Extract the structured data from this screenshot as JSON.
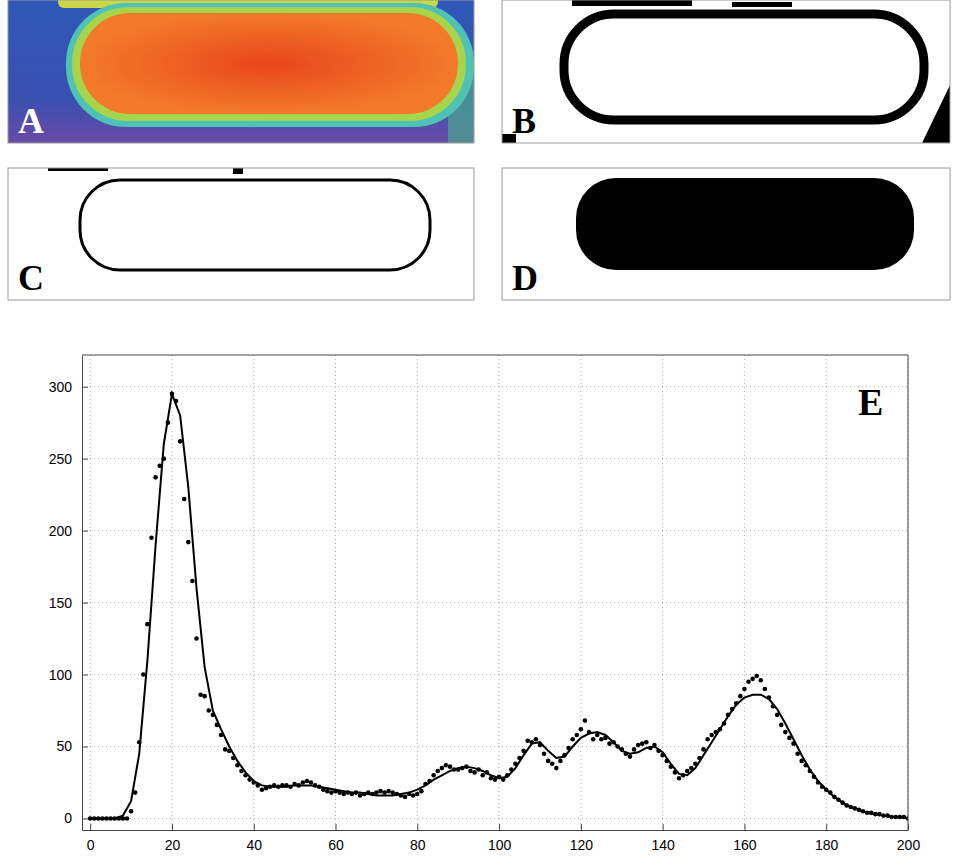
{
  "panels": [
    {
      "label": "A"
    },
    {
      "label": "B"
    },
    {
      "label": "C"
    },
    {
      "label": "D"
    }
  ],
  "chart_data": {
    "type": "scatter",
    "label": "E",
    "xlim": [
      -2,
      200
    ],
    "ylim": [
      -8,
      322
    ],
    "xticks": [
      0,
      20,
      40,
      60,
      80,
      100,
      120,
      140,
      160,
      180,
      200
    ],
    "yticks": [
      0,
      50,
      100,
      150,
      200,
      250,
      300
    ],
    "grid": true,
    "series": [
      {
        "type": "scatter",
        "marker": "circle",
        "color": "#000000",
        "x": [
          0,
          1,
          2,
          3,
          4,
          5,
          6,
          7,
          8,
          9,
          10,
          11,
          12,
          13,
          14,
          15,
          16,
          17,
          18,
          19,
          20,
          21,
          22,
          23,
          24,
          25,
          26,
          27,
          28,
          29,
          30,
          31,
          32,
          33,
          34,
          35,
          36,
          37,
          38,
          39,
          40,
          41,
          42,
          43,
          44,
          45,
          46,
          47,
          48,
          49,
          50,
          51,
          52,
          53,
          54,
          55,
          56,
          57,
          58,
          59,
          60,
          61,
          62,
          63,
          64,
          65,
          66,
          67,
          68,
          69,
          70,
          71,
          72,
          73,
          74,
          75,
          76,
          77,
          78,
          79,
          80,
          81,
          82,
          83,
          84,
          85,
          86,
          87,
          88,
          89,
          90,
          91,
          92,
          93,
          94,
          95,
          96,
          97,
          98,
          99,
          100,
          101,
          102,
          103,
          104,
          105,
          106,
          107,
          108,
          109,
          110,
          111,
          112,
          113,
          114,
          115,
          116,
          117,
          118,
          119,
          120,
          121,
          122,
          123,
          124,
          125,
          126,
          127,
          128,
          129,
          130,
          131,
          132,
          133,
          134,
          135,
          136,
          137,
          138,
          139,
          140,
          141,
          142,
          143,
          144,
          145,
          146,
          147,
          148,
          149,
          150,
          151,
          152,
          153,
          154,
          155,
          156,
          157,
          158,
          159,
          160,
          161,
          162,
          163,
          164,
          165,
          166,
          167,
          168,
          169,
          170,
          171,
          172,
          173,
          174,
          175,
          176,
          177,
          178,
          179,
          180,
          181,
          182,
          183,
          184,
          185,
          186,
          187,
          188,
          189,
          190,
          191,
          192,
          193,
          194,
          195,
          196,
          197,
          198,
          199,
          200
        ],
        "values": [
          0,
          0,
          0,
          0,
          0,
          0,
          0,
          0,
          0,
          0,
          5,
          18,
          53,
          100,
          135,
          195,
          237,
          245,
          250,
          275,
          295,
          290,
          262,
          222,
          192,
          165,
          125,
          86,
          85,
          75,
          72,
          65,
          58,
          48,
          47,
          42,
          37,
          33,
          30,
          27,
          25,
          23,
          20,
          21,
          22,
          23,
          22,
          23,
          23,
          22,
          24,
          23,
          25,
          26,
          25,
          23,
          22,
          20,
          19,
          18,
          19,
          18,
          17,
          18,
          17,
          18,
          16,
          17,
          18,
          17,
          18,
          19,
          18,
          19,
          18,
          17,
          16,
          15,
          17,
          16,
          17,
          19,
          24,
          26,
          30,
          33,
          35,
          37,
          36,
          34,
          34,
          35,
          36,
          33,
          32,
          34,
          30,
          32,
          28,
          27,
          29,
          27,
          30,
          34,
          38,
          42,
          47,
          54,
          53,
          55,
          51,
          45,
          40,
          38,
          35,
          40,
          44,
          49,
          55,
          58,
          62,
          68,
          60,
          55,
          58,
          55,
          56,
          52,
          53,
          50,
          48,
          45,
          43,
          48,
          51,
          52,
          53,
          49,
          51,
          47,
          44,
          40,
          36,
          32,
          28,
          30,
          33,
          35,
          38,
          42,
          48,
          55,
          58,
          60,
          62,
          66,
          72,
          76,
          80,
          85,
          90,
          95,
          97,
          99,
          96,
          90,
          84,
          78,
          72,
          65,
          60,
          56,
          52,
          45,
          40,
          37,
          33,
          29,
          25,
          22,
          20,
          18,
          15,
          13,
          11,
          9,
          8,
          7,
          6,
          5,
          4,
          4,
          3,
          3,
          2,
          2,
          1,
          1,
          1,
          1,
          0
        ]
      },
      {
        "type": "line",
        "line_style": "solid",
        "color": "#000000",
        "x": [
          0,
          2,
          4,
          6,
          8,
          10,
          12,
          14,
          16,
          18,
          20,
          22,
          24,
          26,
          28,
          30,
          32,
          34,
          36,
          38,
          40,
          42,
          44,
          46,
          48,
          50,
          52,
          54,
          56,
          58,
          60,
          62,
          64,
          66,
          68,
          70,
          72,
          74,
          76,
          78,
          80,
          82,
          84,
          86,
          88,
          90,
          92,
          94,
          96,
          98,
          100,
          102,
          104,
          106,
          108,
          110,
          112,
          114,
          116,
          118,
          120,
          122,
          124,
          126,
          128,
          130,
          132,
          134,
          136,
          138,
          140,
          142,
          144,
          146,
          148,
          150,
          152,
          154,
          156,
          158,
          160,
          162,
          164,
          166,
          168,
          170,
          172,
          174,
          176,
          178,
          180,
          182,
          184,
          186,
          188,
          190,
          192,
          194,
          196,
          198,
          200
        ],
        "values": [
          0,
          0,
          0,
          0,
          2,
          12,
          45,
          110,
          190,
          260,
          295,
          280,
          230,
          160,
          105,
          75,
          62,
          50,
          40,
          32,
          26,
          23,
          22,
          22,
          22,
          23,
          23,
          23,
          22,
          21,
          20,
          19,
          18,
          18,
          17,
          16,
          16,
          16,
          17,
          18,
          20,
          23,
          27,
          30,
          33,
          35,
          36,
          35,
          33,
          30,
          28,
          29,
          35,
          44,
          52,
          53,
          47,
          42,
          43,
          50,
          56,
          59,
          60,
          58,
          53,
          47,
          45,
          46,
          49,
          50,
          46,
          38,
          31,
          30,
          35,
          44,
          53,
          62,
          71,
          79,
          84,
          86,
          86,
          83,
          76,
          66,
          55,
          44,
          34,
          26,
          20,
          15,
          11,
          8,
          6,
          4,
          3,
          2,
          1,
          1,
          0
        ]
      }
    ]
  }
}
